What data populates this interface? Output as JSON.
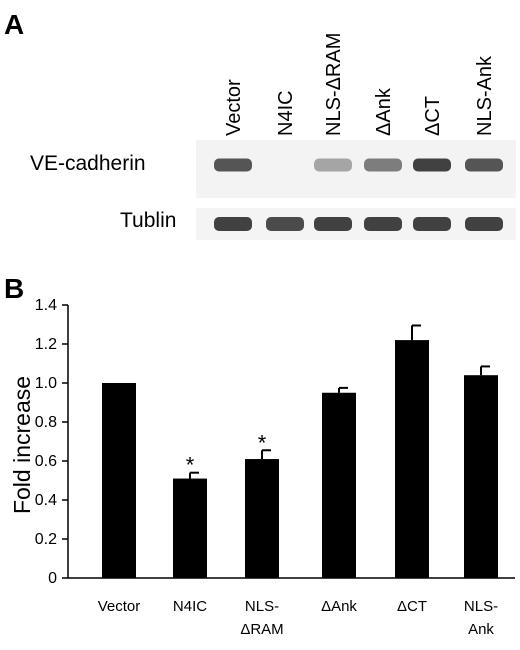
{
  "panel_a": {
    "letter": "A",
    "lanes": [
      "Vector",
      "N4IC",
      "NLS-ΔRAM",
      "ΔAnk",
      "ΔCT",
      "NLS-Ank"
    ],
    "rows": [
      {
        "label": "VE-cadherin",
        "intensities": [
          0.75,
          0.0,
          0.35,
          0.55,
          0.85,
          0.75
        ]
      },
      {
        "label": "Tublin",
        "intensities": [
          0.85,
          0.8,
          0.85,
          0.85,
          0.85,
          0.85
        ]
      }
    ]
  },
  "chart_data": {
    "type": "bar",
    "panel_letter": "B",
    "categories": [
      "Vector",
      "N4IC",
      "NLS-ΔRAM",
      "ΔAnk",
      "ΔCT",
      "NLS-Ank"
    ],
    "category_lines": [
      [
        "Vector"
      ],
      [
        "N4IC"
      ],
      [
        "NLS-",
        "ΔRAM"
      ],
      [
        "ΔAnk"
      ],
      [
        "ΔCT"
      ],
      [
        "NLS-",
        "Ank"
      ]
    ],
    "values": [
      1.0,
      0.51,
      0.61,
      0.95,
      1.22,
      1.04
    ],
    "errors": [
      0.0,
      0.03,
      0.045,
      0.025,
      0.075,
      0.045
    ],
    "significance": [
      "",
      "*",
      "*",
      "",
      "",
      ""
    ],
    "ylabel": "Fold increase",
    "xlabel": "",
    "ylim": [
      0,
      1.4
    ],
    "yticks": [
      "0",
      "0.2",
      "0.4",
      "0.6",
      "0.8",
      "1.0",
      "1.2",
      "1.4"
    ],
    "bar_color": "#000000",
    "grid": false
  }
}
